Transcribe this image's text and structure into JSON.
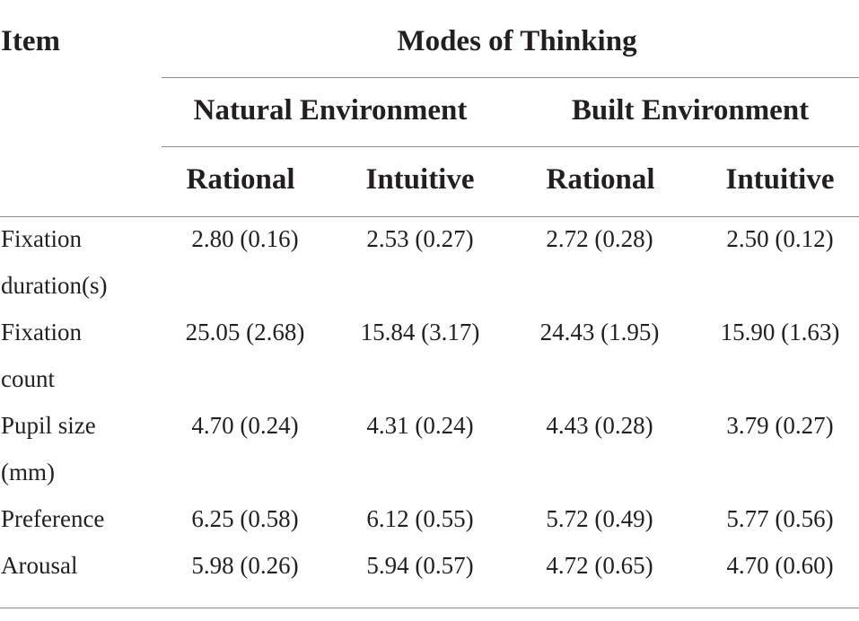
{
  "header": {
    "item": "Item",
    "group_title": "Modes of Thinking",
    "environments": [
      "Natural Environment",
      "Built Environment"
    ],
    "modes": [
      "Rational",
      "Intuitive",
      "Rational",
      "Intuitive"
    ]
  },
  "rows": [
    {
      "item_line1": "Fixation",
      "item_line2": "duration(s)",
      "values": [
        "2.80 (0.16)",
        "2.53 (0.27)",
        "2.72 (0.28)",
        "2.50 (0.12)"
      ]
    },
    {
      "item_line1": "Fixation",
      "item_line2": "count",
      "values": [
        "25.05 (2.68)",
        "15.84 (3.17)",
        "24.43 (1.95)",
        "15.90 (1.63)"
      ]
    },
    {
      "item_line1": "Pupil size",
      "item_line2": "(mm)",
      "values": [
        "4.70 (0.24)",
        "4.31 (0.24)",
        "4.43 (0.28)",
        "3.79 (0.27)"
      ]
    },
    {
      "item_line1": "Preference",
      "item_line2": "",
      "values": [
        "6.25 (0.58)",
        "6.12 (0.55)",
        "5.72 (0.49)",
        "5.77 (0.56)"
      ]
    },
    {
      "item_line1": "Arousal",
      "item_line2": "",
      "values": [
        "5.98 (0.26)",
        "5.94 (0.57)",
        "4.72 (0.65)",
        "4.70 (0.60)"
      ]
    }
  ]
}
